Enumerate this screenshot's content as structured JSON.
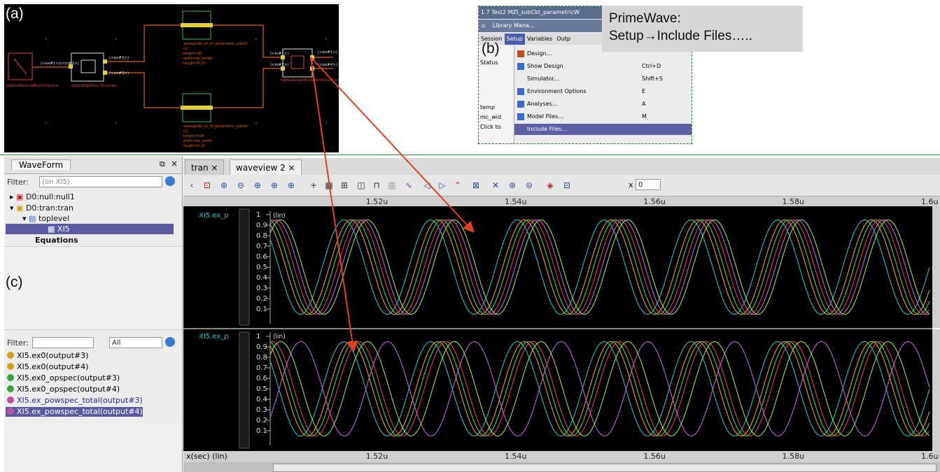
{
  "panel_labels": {
    "a": "(a)",
    "b": "(b)",
    "c": "(c)"
  },
  "schematic": {
    "left_net_labels": "(<ex#1>)(<in#1>)",
    "mid_labels": [
      "(<ex#2>)",
      "(<ex#3>)"
    ],
    "right_labels": [
      "(<in#1>)",
      "(<ex#1>)",
      "(<in#2>)",
      "(<ex#4>)"
    ],
    "block_captions": [
      "opticalSourceBlock/Source",
      "opticalSplitter/YJunction",
      "opticalCoupler/DirectionalCoupler"
    ],
    "wg_top": [
      "waveguide_sh_ht_parametric_subckt",
      "n2",
      "length=90",
      "width=wc_width",
      "height=0.22"
    ],
    "wg_bot": [
      "waveguide_sh_ht_parametric_subckt",
      "n3",
      "length=100",
      "width=wc_width",
      "height=0.22"
    ]
  },
  "primewave": {
    "title": "1.7 Test2 MZI_subCkt_parametricW",
    "toolbar": "Library Mana...",
    "menubar": [
      "Session",
      "Setup",
      "Variables",
      "Outp"
    ],
    "left_rows": [
      "Status",
      "temp",
      "mc_wid",
      "Click to"
    ],
    "menu_items": [
      {
        "label": "Design...",
        "shortcut": ""
      },
      {
        "label": "Show Design",
        "shortcut": "Ctrl+D"
      },
      {
        "label": "Simulator...",
        "shortcut": "Shift+S"
      },
      {
        "label": "Environment Options",
        "shortcut": "E"
      },
      {
        "label": "Analyses...",
        "shortcut": "A"
      },
      {
        "label": "Model Files...",
        "shortcut": "M"
      },
      {
        "label": "Include Files...",
        "shortcut": ""
      }
    ],
    "callout_line1": "PrimeWave:",
    "callout_line2": "Setup→Include Files….."
  },
  "waveform_panel": {
    "title": "WaveForm",
    "filter_label": "Filter:",
    "filter_placeholder": "(on XI5)",
    "tree": [
      "D0:null:null1",
      "D0:tran:tran",
      "toplevel",
      "XI5",
      "Equations"
    ],
    "filter2_label": "Filter:",
    "filter2_value": "All",
    "signals": [
      "XI5.ex0(output#3)",
      "XI5.ex0(output#4)",
      "XI5.ex0_opspec(output#3)",
      "XI5.ex0_opspec(output#4)",
      "XI5.ex_powspec_total(output#3)",
      "XI5.ex_powspec_total(output#4)"
    ]
  },
  "viewer": {
    "tabs": [
      "tran ×",
      "waveview 2 ×"
    ],
    "x_field": "0",
    "x_ticks": [
      "1.52u",
      "1.54u",
      "1.56u",
      "1.58u",
      "1.6u"
    ],
    "y_ticks": [
      "1",
      "0.9",
      "0.8",
      "0.7",
      "0.6",
      "0.5",
      "0.4",
      "0.3",
      "0.2",
      "0.1"
    ],
    "top_signal": "XI5.ex_p",
    "bot_signal": "XI5.ex_p",
    "lin_label": "(lin)",
    "x_axis_label": "x(sec) (lin)"
  },
  "colors": {
    "accent": "#5a5aa0",
    "arrow": "#e04020",
    "schematic_wire": "#e06010"
  },
  "chart_data": {
    "type": "line",
    "xlabel": "x(sec) (lin)",
    "xlim": [
      1.505,
      1.6
    ],
    "ylim": [
      0,
      1
    ],
    "y_scale": "lin",
    "period_us": 0.0125,
    "series": [
      {
        "color": "#20c0c0",
        "phase_us": 0.0
      },
      {
        "color": "#e8a020",
        "phase_us": 0.001
      },
      {
        "color": "#40d060",
        "phase_us": 0.0016
      },
      {
        "color": "#e04040",
        "phase_us": 0.0022
      },
      {
        "color": "#c060e0",
        "phase_us": 0.0028
      },
      {
        "color": "#a0e040",
        "phase_us": 0.0034
      }
    ]
  }
}
